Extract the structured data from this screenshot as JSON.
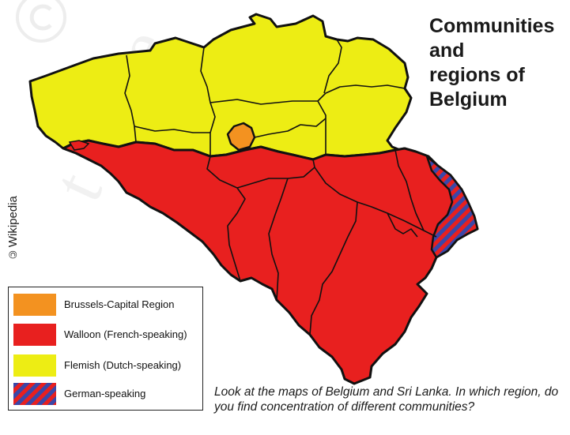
{
  "title_lines": [
    "Communities",
    "and",
    "regions of",
    "Belgium"
  ],
  "credit": "Wikipedia",
  "legend": [
    {
      "label": "Brussels-Capital Region",
      "color": "#f39220"
    },
    {
      "label": "Walloon (French-speaking)",
      "color": "#e8201f"
    },
    {
      "label": "Flemish (Dutch-speaking)",
      "color": "#eded14"
    },
    {
      "label": "German-speaking",
      "color": "#e8201f",
      "stripe_color": "#3b47a8"
    }
  ],
  "question": "Look at the maps of Belgium and Sri Lanka. In which region, do you find concentration of different communities?",
  "colors": {
    "flemish": "#eded14",
    "walloon": "#e8201f",
    "brussels": "#f39220",
    "german_stripe": "#3b47a8",
    "border": "#111111"
  },
  "icons": [
    "copyleft-icon"
  ]
}
